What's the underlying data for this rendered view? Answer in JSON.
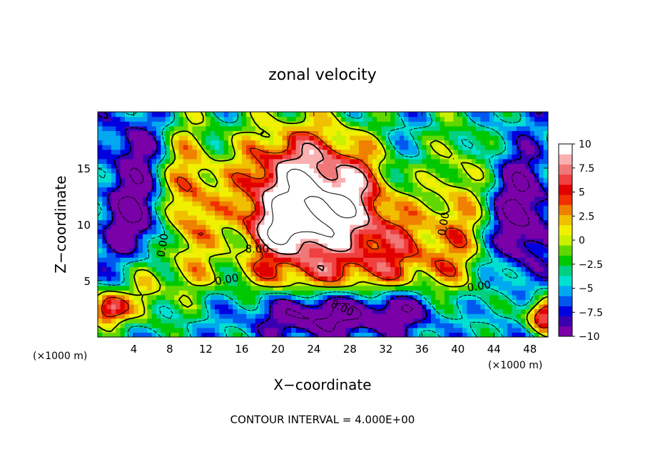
{
  "chart_data": {
    "type": "heatmap",
    "title": "zonal velocity",
    "xlabel": "X−coordinate",
    "ylabel": "Z−coordinate",
    "x_unit_left": "(×1000 m)",
    "x_unit_right": "(×1000 m)",
    "footer": "CONTOUR INTERVAL = 4.000E+00",
    "xlim": [
      0,
      50
    ],
    "ylim": [
      0,
      20
    ],
    "x_ticks": [
      4,
      8,
      12,
      16,
      20,
      24,
      28,
      32,
      36,
      40,
      44,
      48
    ],
    "x_tick_labels": [
      "4",
      "8",
      "12",
      "16",
      "20",
      "24",
      "28",
      "32",
      "36",
      "40",
      "44",
      "48"
    ],
    "y_ticks": [
      5,
      10,
      15
    ],
    "y_tick_labels": [
      "5",
      "10",
      "15"
    ],
    "colorbar": {
      "min": -10,
      "max": 10,
      "ticks": [
        10,
        7.5,
        5,
        2.5,
        0,
        -2.5,
        -5,
        -7.5,
        -10
      ],
      "tick_labels": [
        "10",
        "7.5",
        "5",
        "2.5",
        "0",
        "−2.5",
        "−5",
        "−7.5",
        "−10"
      ],
      "colors": [
        "#7a00a8",
        "#3a00b0",
        "#0000e0",
        "#0058f0",
        "#00a8f0",
        "#00e0d0",
        "#00d080",
        "#00c800",
        "#60d800",
        "#c8f000",
        "#f0f000",
        "#f0c000",
        "#f08000",
        "#f03000",
        "#e00000",
        "#f04040",
        "#f07878",
        "#f8b0b0",
        "#ffffff"
      ]
    },
    "contour_labels": [
      {
        "text": "0.00",
        "x": 7.6,
        "y": 8.1,
        "rotate": -80
      },
      {
        "text": "8.00",
        "x": 17.7,
        "y": 7.5,
        "rotate": 0
      },
      {
        "text": "0.00",
        "x": 14.4,
        "y": 4.8,
        "rotate": -10
      },
      {
        "text": "8.00",
        "x": 27.0,
        "y": 2.3,
        "rotate": 25
      },
      {
        "text": "0.00",
        "x": 38.8,
        "y": 10.0,
        "rotate": -80
      },
      {
        "text": "0.00",
        "x": 42.4,
        "y": 4.2,
        "rotate": -8
      }
    ]
  }
}
